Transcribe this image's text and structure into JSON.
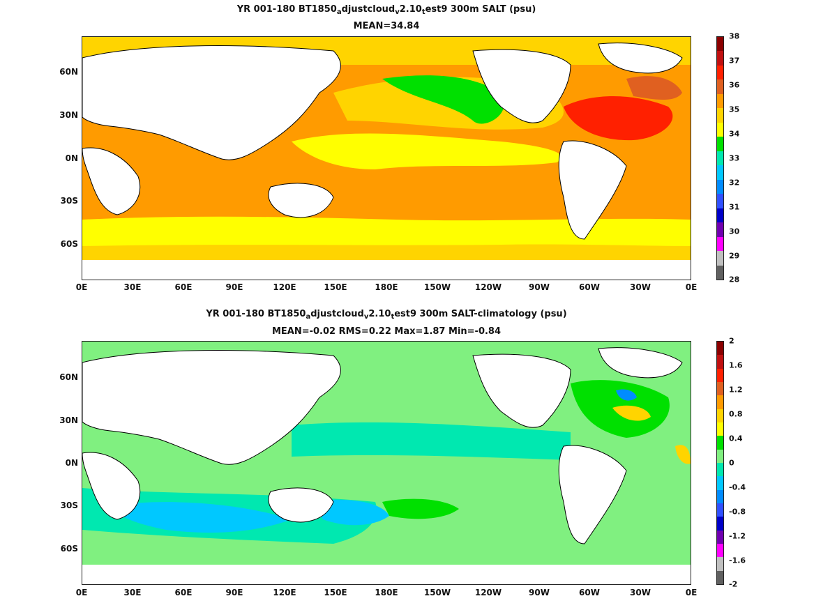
{
  "panels": [
    {
      "title_parts": [
        "YR 001-180 BT1850",
        "a",
        "djustcloud",
        "v",
        "2.10",
        "t",
        "est9 300m SALT (psu)"
      ],
      "subtitle": "MEAN=34.84",
      "x_ticks": [
        "0E",
        "30E",
        "60E",
        "90E",
        "120E",
        "150E",
        "180E",
        "150W",
        "120W",
        "90W",
        "60W",
        "30W",
        "0E"
      ],
      "y_ticks": [
        "60N",
        "30N",
        "0N",
        "30S",
        "60S"
      ],
      "colorbar_labels": [
        "38",
        "37",
        "36",
        "35",
        "34",
        "33",
        "32",
        "31",
        "30",
        "29",
        "28"
      ],
      "colorbar_colors": [
        "#8b0000",
        "#c01010",
        "#ff2000",
        "#e06020",
        "#ff9b00",
        "#ffd400",
        "#ffff00",
        "#00e000",
        "#00e8b0",
        "#00c8ff",
        "#008cff",
        "#3050ff",
        "#0000c8",
        "#7000b0",
        "#ff00ff",
        "#c0c0c0",
        "#606060"
      ]
    },
    {
      "title_parts": [
        "YR 001-180 BT1850",
        "a",
        "djustcloud",
        "v",
        "2.10",
        "t",
        "est9 300m SALT-climatology (psu)"
      ],
      "subtitle": "MEAN=-0.02   RMS=0.22   Max=1.87   Min=-0.84",
      "x_ticks": [
        "0E",
        "30E",
        "60E",
        "90E",
        "120E",
        "150E",
        "180E",
        "150W",
        "120W",
        "90W",
        "60W",
        "30W",
        "0E"
      ],
      "y_ticks": [
        "60N",
        "30N",
        "0N",
        "30S",
        "60S"
      ],
      "colorbar_labels": [
        "2",
        "1.6",
        "1.2",
        "0.8",
        "0.4",
        "0",
        "-0.4",
        "-0.8",
        "-1.2",
        "-1.6",
        "-2"
      ],
      "colorbar_colors": [
        "#8b0000",
        "#c01010",
        "#ff2000",
        "#e06020",
        "#ff9b00",
        "#ffd400",
        "#ffff00",
        "#00e000",
        "#80f080",
        "#00e8b0",
        "#00c8ff",
        "#008cff",
        "#3050ff",
        "#0000c8",
        "#7000b0",
        "#ff00ff",
        "#c0c0c0",
        "#606060"
      ]
    }
  ]
}
